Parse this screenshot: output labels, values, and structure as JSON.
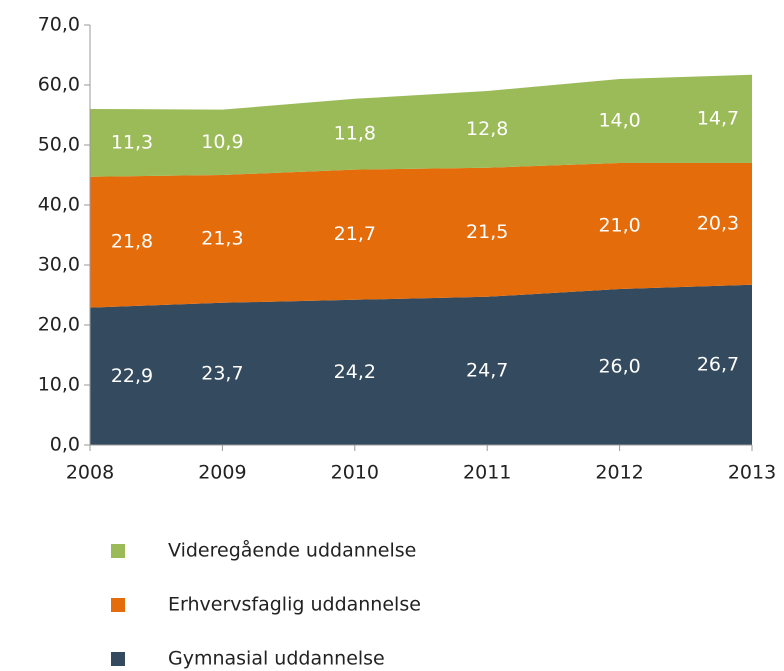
{
  "chart_data": {
    "type": "area",
    "stacked": true,
    "x": [
      2008,
      2009,
      2010,
      2011,
      2012,
      2013
    ],
    "xlim": [
      2008,
      2013
    ],
    "xticks": [
      2008,
      2009,
      2010,
      2011,
      2012,
      2013
    ],
    "ylim": [
      0,
      70
    ],
    "yticks": [
      {
        "value": 0,
        "label": "0,0"
      },
      {
        "value": 10,
        "label": "10,0"
      },
      {
        "value": 20,
        "label": "20,0"
      },
      {
        "value": 30,
        "label": "30,0"
      },
      {
        "value": 40,
        "label": "40,0"
      },
      {
        "value": 50,
        "label": "50,0"
      },
      {
        "value": 60,
        "label": "60,0"
      },
      {
        "value": 70,
        "label": "70,0"
      }
    ],
    "grid": false,
    "series": [
      {
        "name": "Gymnasial uddannelse",
        "color": "#344a5e",
        "values": [
          22.9,
          23.7,
          24.2,
          24.7,
          26.0,
          26.7
        ],
        "value_labels": [
          "22,9",
          "23,7",
          "24,2",
          "24,7",
          "26,0",
          "26,7"
        ]
      },
      {
        "name": "Erhvervsfaglig uddannelse",
        "color": "#e46c0a",
        "values": [
          21.8,
          21.3,
          21.7,
          21.5,
          21.0,
          20.3
        ],
        "value_labels": [
          "21,8",
          "21,3",
          "21,7",
          "21,5",
          "21,0",
          "20,3"
        ]
      },
      {
        "name": "Videregående uddannelse",
        "color": "#9bbb59",
        "values": [
          11.3,
          10.9,
          11.8,
          12.8,
          14.0,
          14.7
        ],
        "value_labels": [
          "11,3",
          "10,9",
          "11,8",
          "12,8",
          "14,0",
          "14,7"
        ]
      }
    ]
  }
}
